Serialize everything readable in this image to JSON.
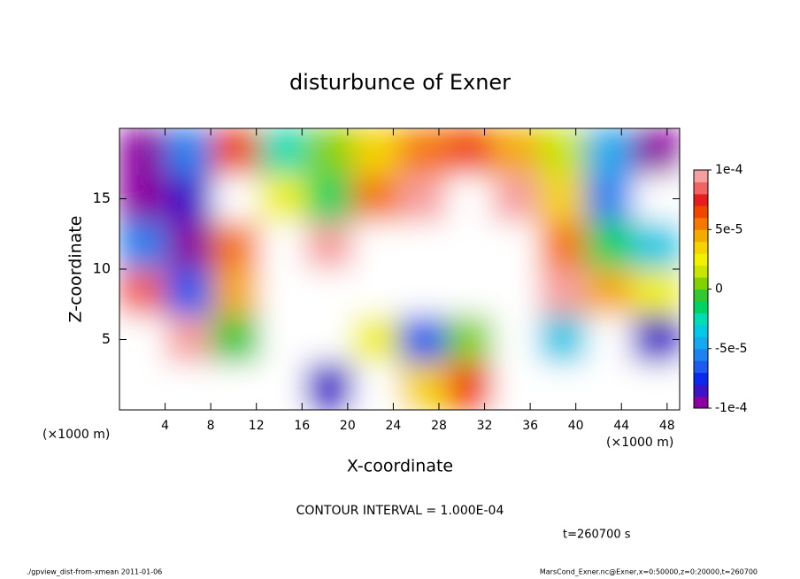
{
  "chart_data": {
    "type": "heatmap",
    "title": "disturbunce of Exner",
    "xlabel": "X-coordinate",
    "ylabel": "Z-coordinate",
    "xunit": "(×1000 m)",
    "yunit": "(×1000 m)",
    "xlim": [
      0,
      49.1
    ],
    "ylim": [
      0,
      20
    ],
    "xticks": [
      4,
      8,
      12,
      16,
      20,
      24,
      28,
      32,
      36,
      40,
      44,
      48
    ],
    "yticks": [
      5,
      10,
      15
    ],
    "z": [
      [
        -9e-05,
        -6e-05,
        6e-05,
        -3e-05,
        0,
        3e-05,
        5e-05,
        6e-05,
        4e-05,
        1e-05,
        -5e-05,
        -0.0001
      ],
      [
        -9e-05,
        -8e-05,
        0.00012,
        2e-05,
        -2e-05,
        5e-05,
        0.0001,
        0.00011,
        9e-05,
        3e-05,
        -6e-05,
        0.00012
      ],
      [
        -6e-05,
        -9e-05,
        5e-05,
        0.00012,
        9e-05,
        0.00011,
        0.00012,
        0.00012,
        0.00012,
        5e-05,
        -2e-05,
        -4e-05
      ],
      [
        8e-05,
        -7e-05,
        4e-05,
        -0.00013,
        -0.00014,
        0.00012,
        0.00012,
        0.00012,
        0.00012,
        9e-05,
        4e-05,
        2e-05
      ],
      [
        0.00012,
        0.0001,
        -1e-05,
        -0.00015,
        -0.00014,
        2e-05,
        -7e-05,
        0,
        0.00012,
        -4e-05,
        0.00012,
        -8e-05
      ],
      [
        0.00012,
        0.00012,
        0.00012,
        -0.00015,
        -8e-05,
        -0.00012,
        3e-05,
        6e-05,
        0.00012,
        0.00012,
        -0.00013,
        -0.00012
      ]
    ],
    "clim": [
      -0.0001,
      0.0001
    ],
    "colorbar_ticks": [
      {
        "value": 0.0001,
        "label": "1e-4"
      },
      {
        "value": 5e-05,
        "label": "5e-5"
      },
      0,
      {
        "value": -5e-05,
        "label": "-5e-5"
      },
      {
        "value": -0.0001,
        "label": "-1e-4"
      }
    ],
    "colormap": [
      "#8b00a0",
      "#3c14c8",
      "#0a28f0",
      "#1e5af0",
      "#1e82f0",
      "#14aaf0",
      "#00c8e6",
      "#00dcb4",
      "#00d264",
      "#32c832",
      "#82d200",
      "#c8e600",
      "#f0f000",
      "#f5d200",
      "#f5aa00",
      "#f57800",
      "#f04600",
      "#e61e1e",
      "#f06464",
      "#f5a0a0"
    ],
    "out_of_range_color": "#ffffff",
    "note": "CONTOUR INTERVAL = 1.000E-04",
    "time": "t=260700 s",
    "footer_left": "./gpview_dist-from-xmean  2011-01-06",
    "footer_right": "MarsCond_Exner.nc@Exner,x=0:50000,z=0:20000,t=260700"
  }
}
